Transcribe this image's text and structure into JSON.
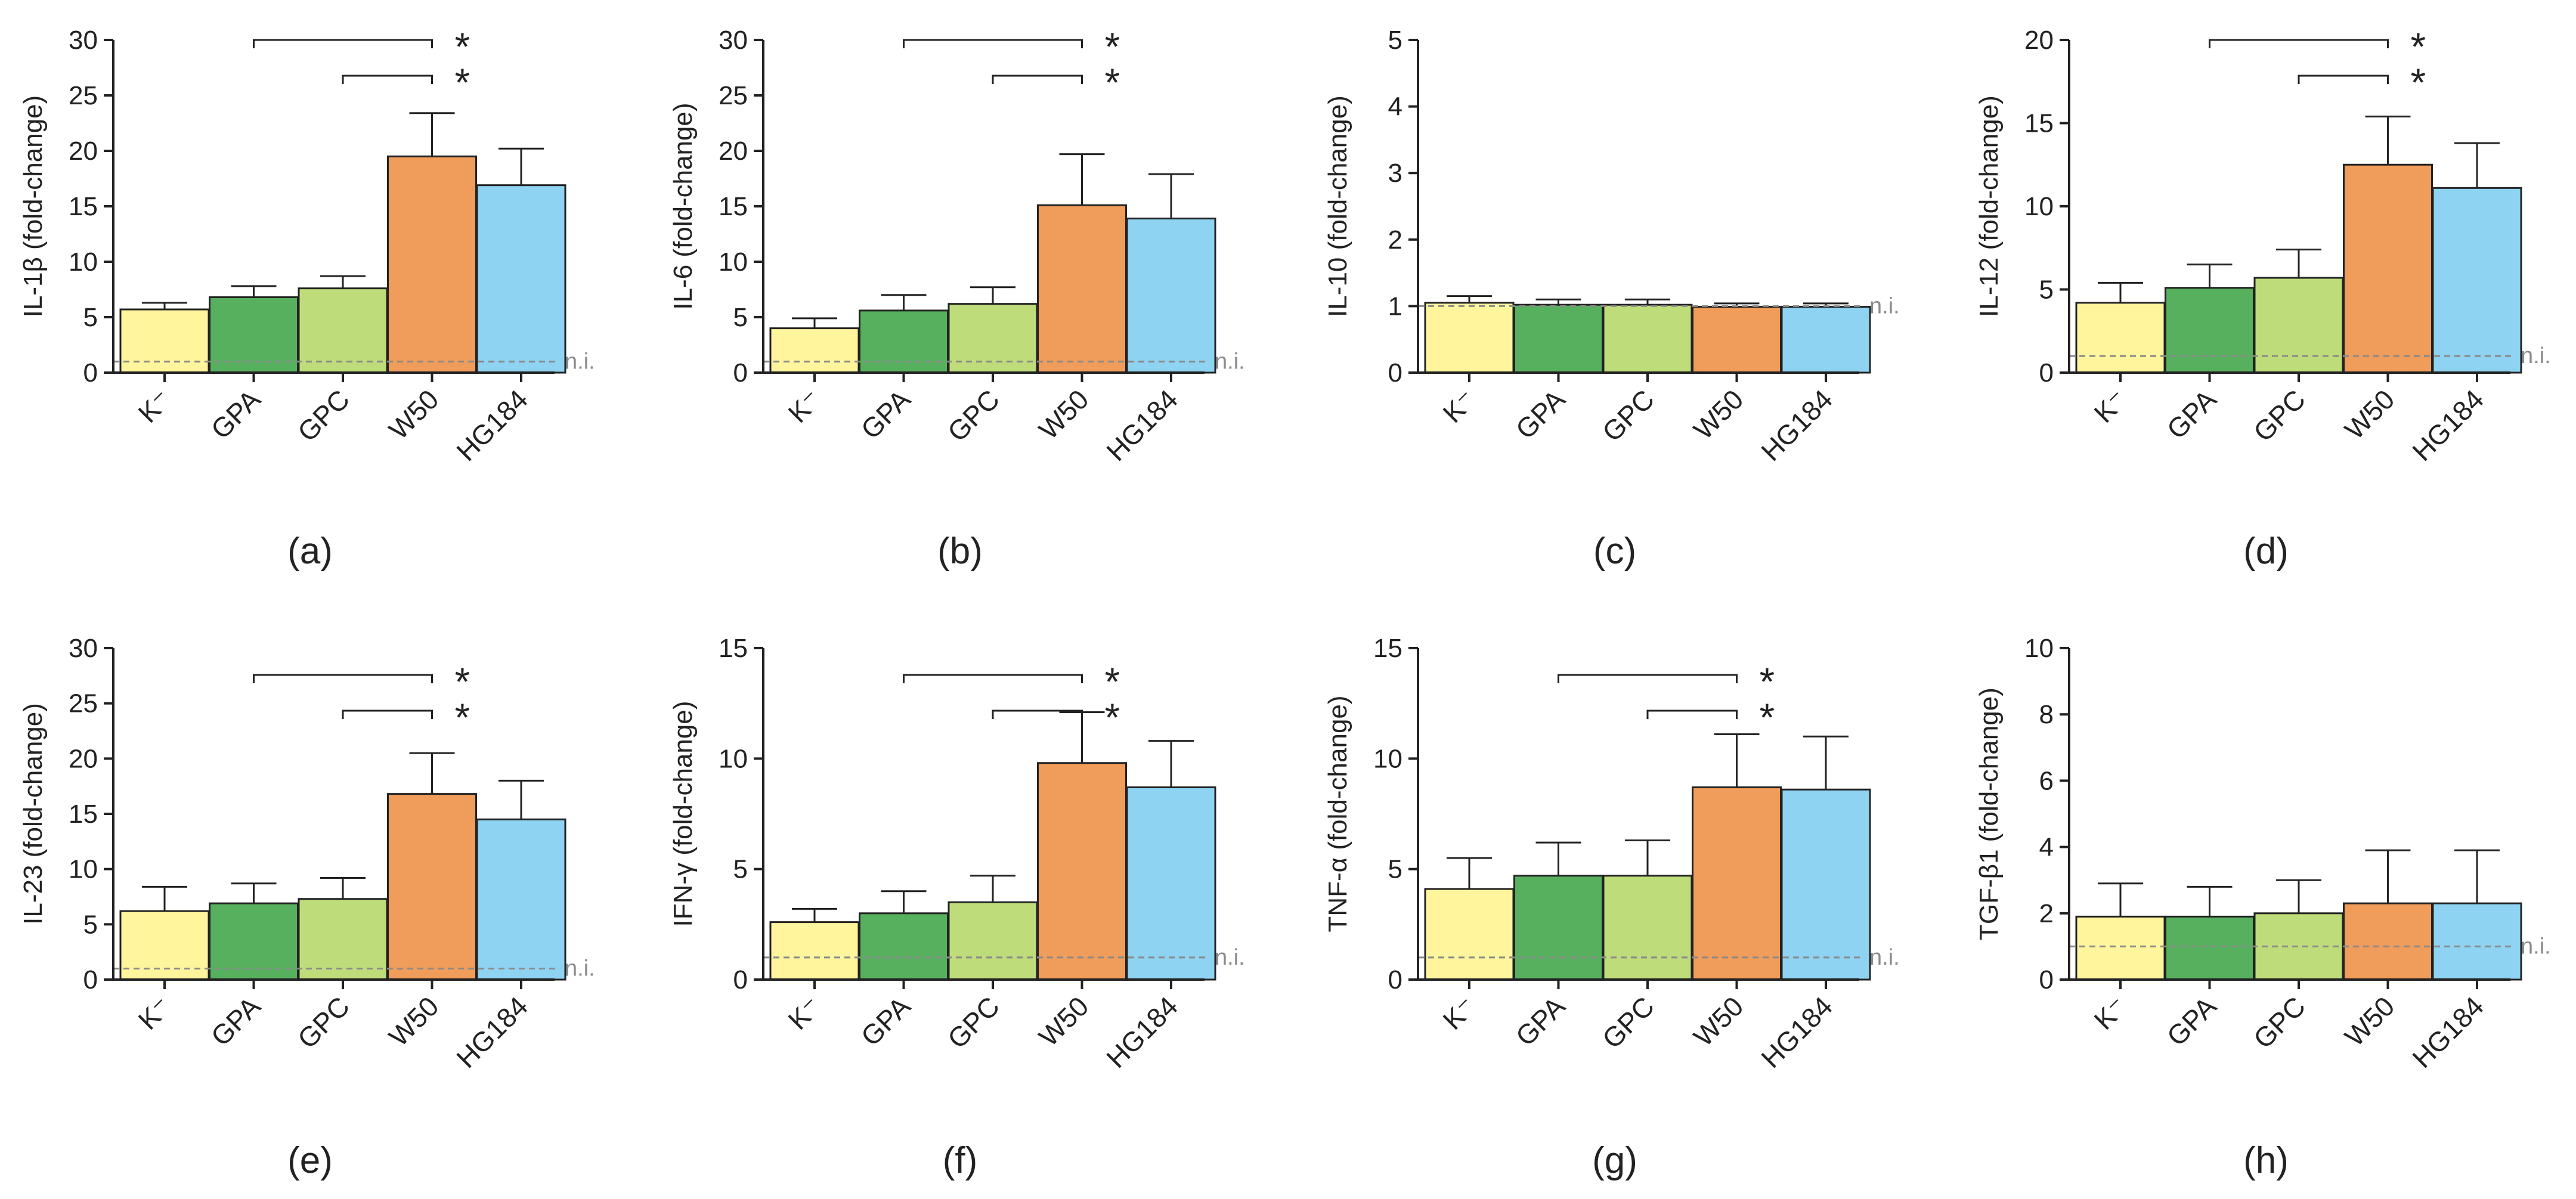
{
  "colors": {
    "K-": "#fff59d",
    "GPA": "#57b05d",
    "GPC": "#bfdc7a",
    "W50": "#f09c5a",
    "HG184": "#8ed3f2",
    "reference_line": "#8a8a8a",
    "axis": "#222222"
  },
  "chart_data": [
    {
      "type": "bar",
      "panel": "(a)",
      "ylabel": "IL-1β (fold-change)",
      "ylim": [
        0,
        30
      ],
      "yticks": [
        "0",
        "5",
        "10",
        "15",
        "20",
        "25",
        "30"
      ],
      "categories": [
        "K⁻",
        "GPA",
        "GPC",
        "W50",
        "HG184"
      ],
      "values": [
        5.7,
        6.8,
        7.6,
        19.5,
        16.9
      ],
      "errors": [
        0.6,
        1.0,
        1.1,
        3.9,
        3.3
      ],
      "reference_line": {
        "y": 1,
        "label": "n.i."
      },
      "significance": [
        {
          "from": "GPA",
          "to": "W50",
          "label": "*"
        },
        {
          "from": "GPC",
          "to": "W50",
          "label": "*"
        }
      ]
    },
    {
      "type": "bar",
      "panel": "(b)",
      "ylabel": "IL-6 (fold-change)",
      "ylim": [
        0,
        30
      ],
      "yticks": [
        "0",
        "5",
        "10",
        "15",
        "20",
        "25",
        "30"
      ],
      "categories": [
        "K⁻",
        "GPA",
        "GPC",
        "W50",
        "HG184"
      ],
      "values": [
        4.0,
        5.6,
        6.2,
        15.1,
        13.9
      ],
      "errors": [
        0.9,
        1.4,
        1.5,
        4.6,
        4.0
      ],
      "reference_line": {
        "y": 1,
        "label": "n.i."
      },
      "significance": [
        {
          "from": "GPA",
          "to": "W50",
          "label": "*"
        },
        {
          "from": "GPC",
          "to": "W50",
          "label": "*"
        }
      ]
    },
    {
      "type": "bar",
      "panel": "(c)",
      "ylabel": "IL-10 (fold-change)",
      "ylim": [
        0,
        5
      ],
      "yticks": [
        "0",
        "1",
        "2",
        "3",
        "4",
        "5"
      ],
      "categories": [
        "K⁻",
        "GPA",
        "GPC",
        "W50",
        "HG184"
      ],
      "values": [
        1.05,
        1.02,
        1.02,
        0.99,
        0.99
      ],
      "errors": [
        0.1,
        0.08,
        0.08,
        0.05,
        0.05
      ],
      "reference_line": {
        "y": 1,
        "label": "n.i."
      },
      "significance": []
    },
    {
      "type": "bar",
      "panel": "(d)",
      "ylabel": "IL-12 (fold-change)",
      "ylim": [
        0,
        20
      ],
      "yticks": [
        "0",
        "5",
        "10",
        "15",
        "20"
      ],
      "categories": [
        "K⁻",
        "GPA",
        "GPC",
        "W50",
        "HG184"
      ],
      "values": [
        4.2,
        5.1,
        5.7,
        12.5,
        11.1
      ],
      "errors": [
        1.2,
        1.4,
        1.7,
        2.9,
        2.7
      ],
      "reference_line": {
        "y": 1,
        "label": "n.i."
      },
      "significance": [
        {
          "from": "GPA",
          "to": "W50",
          "label": "*"
        },
        {
          "from": "GPC",
          "to": "W50",
          "label": "*"
        }
      ]
    },
    {
      "type": "bar",
      "panel": "(e)",
      "ylabel": "IL-23 (fold-change)",
      "ylim": [
        0,
        30
      ],
      "yticks": [
        "0",
        "5",
        "10",
        "15",
        "20",
        "25",
        "30"
      ],
      "categories": [
        "K⁻",
        "GPA",
        "GPC",
        "W50",
        "HG184"
      ],
      "values": [
        6.2,
        6.9,
        7.3,
        16.8,
        14.5
      ],
      "errors": [
        2.2,
        1.8,
        1.9,
        3.7,
        3.5
      ],
      "reference_line": {
        "y": 1,
        "label": "n.i."
      },
      "significance": [
        {
          "from": "GPA",
          "to": "W50",
          "label": "*"
        },
        {
          "from": "GPC",
          "to": "W50",
          "label": "*"
        }
      ]
    },
    {
      "type": "bar",
      "panel": "(f)",
      "ylabel": "IFN-γ (fold-change)",
      "ylim": [
        0,
        15
      ],
      "yticks": [
        "0",
        "5",
        "10",
        "15"
      ],
      "categories": [
        "K⁻",
        "GPA",
        "GPC",
        "W50",
        "HG184"
      ],
      "values": [
        2.6,
        3.0,
        3.5,
        9.8,
        8.7
      ],
      "errors": [
        0.6,
        1.0,
        1.2,
        2.3,
        2.1
      ],
      "reference_line": {
        "y": 1,
        "label": "n.i."
      },
      "significance": [
        {
          "from": "GPA",
          "to": "W50",
          "label": "*"
        },
        {
          "from": "GPC",
          "to": "W50",
          "label": "*"
        }
      ]
    },
    {
      "type": "bar",
      "panel": "(g)",
      "ylabel": "TNF-α (fold-change)",
      "ylim": [
        0,
        15
      ],
      "yticks": [
        "0",
        "5",
        "10",
        "15"
      ],
      "categories": [
        "K⁻",
        "GPA",
        "GPC",
        "W50",
        "HG184"
      ],
      "values": [
        4.1,
        4.7,
        4.7,
        8.7,
        8.6
      ],
      "errors": [
        1.4,
        1.5,
        1.6,
        2.4,
        2.4
      ],
      "reference_line": {
        "y": 1,
        "label": "n.i."
      },
      "significance": [
        {
          "from": "GPA",
          "to": "W50",
          "label": "*"
        },
        {
          "from": "GPC",
          "to": "W50",
          "label": "*"
        }
      ]
    },
    {
      "type": "bar",
      "panel": "(h)",
      "ylabel": "TGF-β1 (fold-change)",
      "ylim": [
        0,
        10
      ],
      "yticks": [
        "0",
        "2",
        "4",
        "6",
        "8",
        "10"
      ],
      "categories": [
        "K⁻",
        "GPA",
        "GPC",
        "W50",
        "HG184"
      ],
      "values": [
        1.9,
        1.9,
        2.0,
        2.3,
        2.3
      ],
      "errors": [
        1.0,
        0.9,
        1.0,
        1.6,
        1.6
      ],
      "reference_line": {
        "y": 1,
        "label": "n.i."
      },
      "significance": []
    }
  ]
}
